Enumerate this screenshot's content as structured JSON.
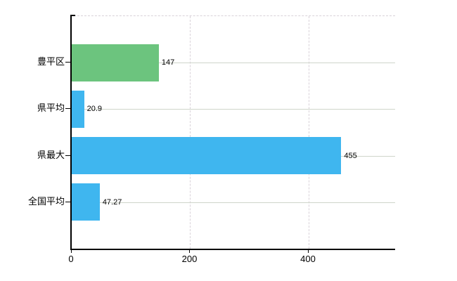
{
  "chart_data": {
    "type": "bar",
    "orientation": "horizontal",
    "title": "",
    "xlabel": "",
    "ylabel": "",
    "categories": [
      "豊平区",
      "県平均",
      "県最大",
      "全国平均"
    ],
    "values": [
      147,
      20.9,
      455,
      47.27
    ],
    "value_labels": [
      "147",
      "20.9",
      "455",
      "47.27"
    ],
    "bar_colors": [
      "#6cc47e",
      "#3fb6ef",
      "#3fb6ef",
      "#3fb6ef"
    ],
    "xlim": [
      0,
      546
    ],
    "xticks": [
      0,
      200,
      400
    ],
    "xtick_labels": [
      "0",
      "200",
      "400"
    ],
    "grid": "on",
    "legend": "none"
  },
  "colors": {
    "axis": "#000000",
    "horizontal_grid": "#cfd5ca",
    "vertical_grid": "#d9d2d9",
    "top_border_dashed": "#d9d2d9",
    "bar_highlight_green": "#6cc47e",
    "bar_default_blue": "#3fb6ef",
    "text": "#000000",
    "background": "#ffffff"
  }
}
